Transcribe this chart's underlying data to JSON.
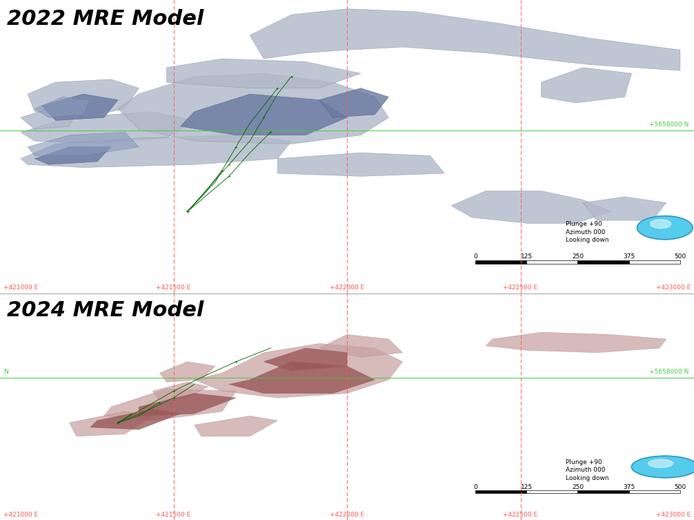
{
  "title_top": "2022 MRE Model",
  "title_bottom": "2024 MRE Model",
  "background_color": "#ffffff",
  "grid_color_red": "#ff5555",
  "grid_color_green": "#44cc44",
  "title_fontsize": 22,
  "label_fontsize": 7.5,
  "annotation_text_top": "Plunge +90\nAzimuth 000\nLooking down",
  "annotation_text_bottom": "Plunge +90\nAzimuth 000\nLooking down",
  "x_labels": [
    "+421000 E",
    "+421500 E",
    "+422000 E",
    "+422500 E",
    "+423000 E"
  ],
  "y_label_top": "+5658000 N",
  "y_label_bottom": "+5658000 N",
  "scale_ticks": [
    0,
    125,
    250,
    375,
    500
  ],
  "gray_color_light": "#b0b8c8",
  "gray_color_dark": "#6878a0",
  "blue_accent": "#8899bb",
  "red_color_light": "#c8a0a0",
  "red_color_dark": "#9a5858",
  "green_line_color": "#006600",
  "globe_color": "#55ccee",
  "globe_edge": "#3399bb"
}
